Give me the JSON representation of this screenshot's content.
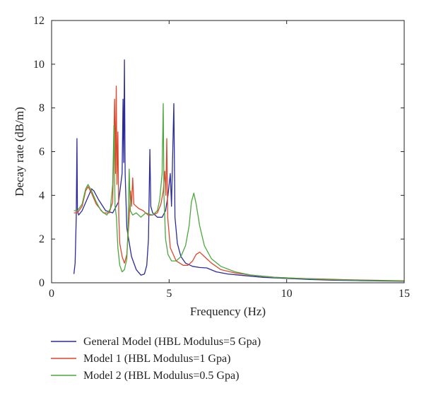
{
  "chart_data": {
    "type": "line",
    "title": "",
    "xlabel": "Frequency (Hz)",
    "ylabel": "Decay rate (dB/m)",
    "xlim": [
      0,
      15
    ],
    "ylim": [
      0,
      12
    ],
    "xticks": [
      0,
      5,
      10,
      15
    ],
    "yticks": [
      0,
      2,
      4,
      6,
      8,
      10,
      12
    ],
    "grid": false,
    "legend_position": "bottom-left, outside plot",
    "series": [
      {
        "name": "General Model (HBL Modulus=5 Gpa)",
        "color": "#2b2b9a",
        "points": [
          [
            0.95,
            0.4
          ],
          [
            1.0,
            0.9
          ],
          [
            1.05,
            3.0
          ],
          [
            1.08,
            6.6
          ],
          [
            1.1,
            3.3
          ],
          [
            1.15,
            3.1
          ],
          [
            1.3,
            3.3
          ],
          [
            1.5,
            3.8
          ],
          [
            1.7,
            4.3
          ],
          [
            1.8,
            4.2
          ],
          [
            2.0,
            3.8
          ],
          [
            2.3,
            3.3
          ],
          [
            2.6,
            3.2
          ],
          [
            2.85,
            3.7
          ],
          [
            3.0,
            5.0
          ],
          [
            3.04,
            8.4
          ],
          [
            3.07,
            5.5
          ],
          [
            3.1,
            10.2
          ],
          [
            3.13,
            5.0
          ],
          [
            3.2,
            2.5
          ],
          [
            3.4,
            1.2
          ],
          [
            3.6,
            0.6
          ],
          [
            3.8,
            0.35
          ],
          [
            3.95,
            0.4
          ],
          [
            4.05,
            0.8
          ],
          [
            4.12,
            2.0
          ],
          [
            4.18,
            6.1
          ],
          [
            4.22,
            3.5
          ],
          [
            4.3,
            3.2
          ],
          [
            4.5,
            3.0
          ],
          [
            4.7,
            3.0
          ],
          [
            4.85,
            3.3
          ],
          [
            4.95,
            4.0
          ],
          [
            5.05,
            5.0
          ],
          [
            5.1,
            3.5
          ],
          [
            5.2,
            8.2
          ],
          [
            5.25,
            3.0
          ],
          [
            5.35,
            1.8
          ],
          [
            5.5,
            1.2
          ],
          [
            5.7,
            0.9
          ],
          [
            6.0,
            0.75
          ],
          [
            6.3,
            0.7
          ],
          [
            6.6,
            0.68
          ],
          [
            7.0,
            0.5
          ],
          [
            7.5,
            0.4
          ],
          [
            8.0,
            0.35
          ],
          [
            9.0,
            0.25
          ],
          [
            10.0,
            0.2
          ],
          [
            11.0,
            0.15
          ],
          [
            12.0,
            0.12
          ],
          [
            13.0,
            0.1
          ],
          [
            14.0,
            0.08
          ],
          [
            15.0,
            0.07
          ]
        ]
      },
      {
        "name": "Model 1 (HBL Modulus=1 Gpa)",
        "color": "#e0452a",
        "points": [
          [
            0.95,
            3.2
          ],
          [
            1.1,
            3.2
          ],
          [
            1.3,
            3.5
          ],
          [
            1.45,
            4.2
          ],
          [
            1.55,
            4.4
          ],
          [
            1.7,
            4.1
          ],
          [
            1.9,
            3.6
          ],
          [
            2.2,
            3.2
          ],
          [
            2.45,
            3.2
          ],
          [
            2.6,
            3.7
          ],
          [
            2.68,
            8.4
          ],
          [
            2.72,
            5.0
          ],
          [
            2.75,
            9.0
          ],
          [
            2.78,
            4.5
          ],
          [
            2.82,
            6.9
          ],
          [
            2.86,
            3.0
          ],
          [
            2.9,
            1.8
          ],
          [
            3.0,
            1.2
          ],
          [
            3.1,
            0.9
          ],
          [
            3.2,
            1.3
          ],
          [
            3.3,
            3.0
          ],
          [
            3.36,
            4.2
          ],
          [
            3.4,
            3.5
          ],
          [
            3.45,
            4.8
          ],
          [
            3.5,
            3.6
          ],
          [
            3.7,
            3.4
          ],
          [
            3.9,
            3.3
          ],
          [
            4.1,
            3.1
          ],
          [
            4.3,
            3.1
          ],
          [
            4.5,
            3.2
          ],
          [
            4.65,
            3.6
          ],
          [
            4.75,
            4.2
          ],
          [
            4.82,
            5.1
          ],
          [
            4.86,
            4.0
          ],
          [
            4.9,
            6.6
          ],
          [
            4.94,
            3.0
          ],
          [
            5.05,
            1.6
          ],
          [
            5.3,
            1.0
          ],
          [
            5.6,
            0.8
          ],
          [
            5.8,
            0.8
          ],
          [
            6.0,
            1.0
          ],
          [
            6.15,
            1.3
          ],
          [
            6.3,
            1.4
          ],
          [
            6.5,
            1.2
          ],
          [
            6.8,
            0.9
          ],
          [
            7.2,
            0.6
          ],
          [
            7.8,
            0.45
          ],
          [
            8.5,
            0.35
          ],
          [
            9.5,
            0.25
          ],
          [
            10.5,
            0.2
          ],
          [
            11.5,
            0.17
          ],
          [
            12.5,
            0.14
          ],
          [
            13.5,
            0.12
          ],
          [
            14.5,
            0.1
          ],
          [
            15.0,
            0.09
          ]
        ]
      },
      {
        "name": "Model 2 (HBL Modulus=0.5 Gpa)",
        "color": "#4aa83c",
        "points": [
          [
            0.95,
            3.3
          ],
          [
            1.1,
            3.3
          ],
          [
            1.3,
            3.6
          ],
          [
            1.45,
            4.3
          ],
          [
            1.55,
            4.5
          ],
          [
            1.7,
            4.2
          ],
          [
            1.9,
            3.7
          ],
          [
            2.1,
            3.3
          ],
          [
            2.35,
            3.1
          ],
          [
            2.5,
            3.4
          ],
          [
            2.6,
            4.5
          ],
          [
            2.65,
            7.2
          ],
          [
            2.7,
            3.5
          ],
          [
            2.76,
            3.0
          ],
          [
            2.82,
            1.6
          ],
          [
            2.9,
            0.8
          ],
          [
            3.0,
            0.5
          ],
          [
            3.1,
            0.6
          ],
          [
            3.2,
            1.1
          ],
          [
            3.25,
            2.4
          ],
          [
            3.3,
            5.2
          ],
          [
            3.35,
            3.3
          ],
          [
            3.45,
            3.1
          ],
          [
            3.6,
            3.2
          ],
          [
            3.8,
            3.0
          ],
          [
            4.0,
            3.2
          ],
          [
            4.3,
            3.1
          ],
          [
            4.5,
            3.3
          ],
          [
            4.6,
            3.8
          ],
          [
            4.7,
            5.0
          ],
          [
            4.75,
            8.2
          ],
          [
            4.78,
            4.0
          ],
          [
            4.85,
            2.0
          ],
          [
            4.95,
            1.3
          ],
          [
            5.1,
            1.0
          ],
          [
            5.3,
            1.0
          ],
          [
            5.5,
            1.2
          ],
          [
            5.7,
            1.7
          ],
          [
            5.85,
            2.6
          ],
          [
            5.95,
            3.7
          ],
          [
            6.05,
            4.1
          ],
          [
            6.15,
            3.6
          ],
          [
            6.3,
            2.6
          ],
          [
            6.5,
            1.7
          ],
          [
            6.8,
            1.1
          ],
          [
            7.2,
            0.75
          ],
          [
            7.8,
            0.5
          ],
          [
            8.5,
            0.35
          ],
          [
            9.5,
            0.25
          ],
          [
            10.5,
            0.2
          ],
          [
            11.5,
            0.16
          ],
          [
            12.5,
            0.13
          ],
          [
            13.5,
            0.11
          ],
          [
            14.5,
            0.09
          ],
          [
            15.0,
            0.08
          ]
        ]
      }
    ]
  }
}
